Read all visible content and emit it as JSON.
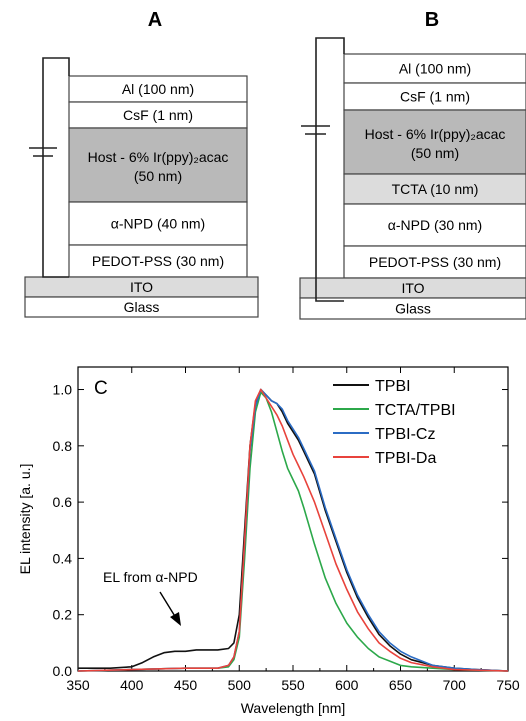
{
  "panel_a": {
    "label": "A",
    "layers": [
      {
        "id": "al",
        "text": "Al (100 nm)",
        "fill": "#ffffff"
      },
      {
        "id": "csf",
        "text": "CsF (1 nm)",
        "fill": "#ffffff"
      },
      {
        "id": "host",
        "text": "Host - 6% Ir(ppy)₂acac",
        "text2": "(50 nm)",
        "fill": "#b9b9b9"
      },
      {
        "id": "npd",
        "text": "α-NPD (40 nm)",
        "fill": "#ffffff"
      },
      {
        "id": "pedot",
        "text": "PEDOT-PSS (30 nm)",
        "fill": "#ffffff"
      },
      {
        "id": "ito",
        "text": "ITO",
        "fill": "#dcdcdc"
      },
      {
        "id": "glass",
        "text": "Glass",
        "fill": "#ffffff"
      }
    ]
  },
  "panel_b": {
    "label": "B",
    "layers": [
      {
        "id": "al",
        "text": "Al (100 nm)",
        "fill": "#ffffff"
      },
      {
        "id": "csf",
        "text": "CsF (1 nm)",
        "fill": "#ffffff"
      },
      {
        "id": "host",
        "text": "Host - 6% Ir(ppy)₂acac",
        "text2": "(50 nm)",
        "fill": "#b9b9b9"
      },
      {
        "id": "tcta",
        "text": "TCTA (10 nm)",
        "fill": "#dcdcdc"
      },
      {
        "id": "npd",
        "text": "α-NPD (30 nm)",
        "fill": "#ffffff"
      },
      {
        "id": "pedot",
        "text": "PEDOT-PSS (30 nm)",
        "fill": "#ffffff"
      },
      {
        "id": "ito",
        "text": "ITO",
        "fill": "#dcdcdc"
      },
      {
        "id": "glass",
        "text": "Glass",
        "fill": "#ffffff"
      }
    ]
  },
  "chart_data": {
    "type": "line",
    "panel_label": "C",
    "xlabel": "Wavelength [nm]",
    "ylabel": "EL intensity [a. u.]",
    "xlim": [
      350,
      750
    ],
    "ylim": [
      0.0,
      1.08
    ],
    "xticks": [
      350,
      400,
      450,
      500,
      550,
      600,
      650,
      700,
      750
    ],
    "yticks": [
      0.0,
      0.2,
      0.4,
      0.6,
      0.8,
      1.0
    ],
    "legend_position": "top-right",
    "annotation": "EL from α-NPD",
    "annotation_point": [
      440,
      0.075
    ],
    "series": [
      {
        "name": "TPBI",
        "color": "#111111",
        "x": [
          350,
          380,
          400,
          410,
          420,
          430,
          440,
          450,
          460,
          470,
          480,
          490,
          495,
          500,
          505,
          510,
          515,
          520,
          525,
          530,
          535,
          540,
          545,
          550,
          555,
          560,
          565,
          570,
          580,
          590,
          600,
          610,
          620,
          630,
          640,
          650,
          660,
          680,
          700,
          720,
          750
        ],
        "y": [
          0.01,
          0.01,
          0.015,
          0.03,
          0.05,
          0.065,
          0.07,
          0.07,
          0.075,
          0.075,
          0.075,
          0.08,
          0.1,
          0.2,
          0.5,
          0.8,
          0.95,
          1.0,
          0.98,
          0.96,
          0.95,
          0.92,
          0.88,
          0.85,
          0.82,
          0.78,
          0.74,
          0.7,
          0.57,
          0.46,
          0.35,
          0.26,
          0.19,
          0.13,
          0.09,
          0.06,
          0.04,
          0.02,
          0.01,
          0.005,
          0.0
        ]
      },
      {
        "name": "TCTA/TPBI",
        "color": "#2ca84a",
        "x": [
          350,
          400,
          450,
          480,
          490,
          495,
          500,
          505,
          510,
          515,
          520,
          525,
          530,
          535,
          540,
          545,
          550,
          555,
          560,
          570,
          580,
          590,
          600,
          610,
          620,
          630,
          640,
          650,
          660,
          680,
          700,
          750
        ],
        "y": [
          0.0,
          0.005,
          0.01,
          0.01,
          0.015,
          0.04,
          0.12,
          0.4,
          0.72,
          0.92,
          0.99,
          0.97,
          0.92,
          0.85,
          0.78,
          0.72,
          0.68,
          0.64,
          0.58,
          0.45,
          0.33,
          0.24,
          0.17,
          0.12,
          0.08,
          0.05,
          0.035,
          0.02,
          0.015,
          0.01,
          0.005,
          0.0
        ]
      },
      {
        "name": "TPBI-Cz",
        "color": "#2b6cc4",
        "x": [
          350,
          400,
          450,
          480,
          490,
          495,
          500,
          505,
          510,
          515,
          520,
          525,
          530,
          535,
          540,
          545,
          550,
          555,
          560,
          565,
          570,
          580,
          590,
          600,
          610,
          620,
          630,
          640,
          650,
          660,
          680,
          700,
          720,
          750
        ],
        "y": [
          0.0,
          0.005,
          0.01,
          0.01,
          0.02,
          0.05,
          0.14,
          0.45,
          0.78,
          0.94,
          1.0,
          0.98,
          0.96,
          0.95,
          0.93,
          0.89,
          0.86,
          0.83,
          0.79,
          0.75,
          0.71,
          0.58,
          0.47,
          0.36,
          0.27,
          0.2,
          0.14,
          0.1,
          0.07,
          0.05,
          0.02,
          0.01,
          0.005,
          0.0
        ]
      },
      {
        "name": "TPBI-Da",
        "color": "#e8433c",
        "x": [
          350,
          400,
          450,
          480,
          490,
          495,
          500,
          505,
          510,
          515,
          520,
          525,
          530,
          535,
          540,
          545,
          550,
          555,
          560,
          570,
          580,
          590,
          600,
          610,
          620,
          630,
          640,
          650,
          660,
          680,
          700,
          750
        ],
        "y": [
          0.0,
          0.005,
          0.01,
          0.01,
          0.02,
          0.05,
          0.14,
          0.46,
          0.8,
          0.96,
          1.0,
          0.97,
          0.94,
          0.91,
          0.87,
          0.82,
          0.77,
          0.73,
          0.69,
          0.6,
          0.49,
          0.38,
          0.29,
          0.21,
          0.15,
          0.1,
          0.07,
          0.045,
          0.03,
          0.015,
          0.005,
          0.0
        ]
      }
    ]
  }
}
